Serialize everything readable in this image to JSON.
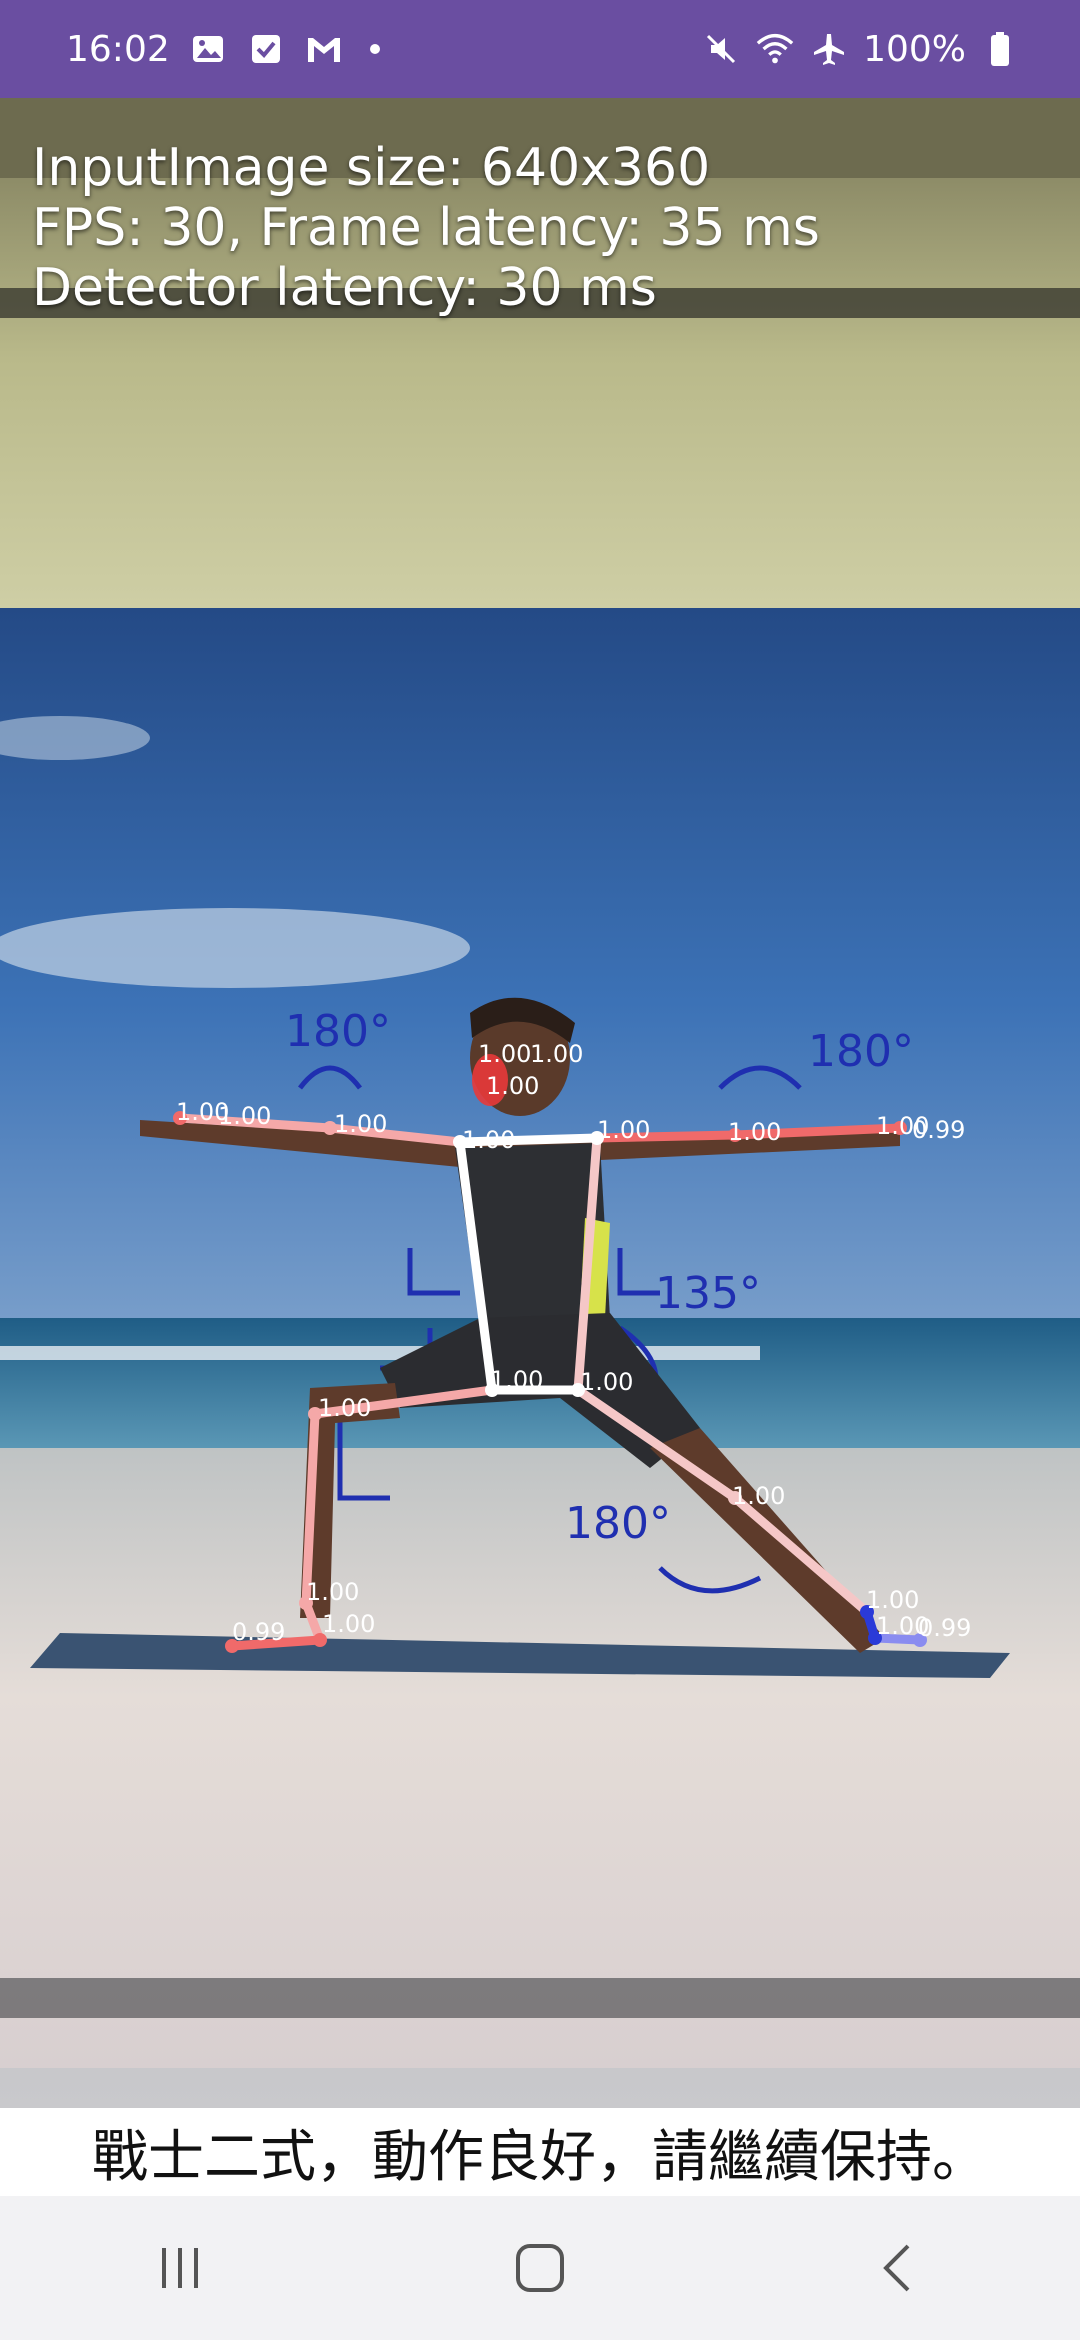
{
  "status_bar": {
    "time": "16:02",
    "battery": "100%",
    "icons_left": [
      "gallery-icon",
      "check-icon",
      "gmail-icon",
      "dot-icon"
    ],
    "icons_right": [
      "mute-icon",
      "wifi-icon",
      "airplane-icon",
      "battery-icon"
    ]
  },
  "overlay": {
    "input_size": "InputImage size: 640x360",
    "fps_latency": "FPS: 30, Frame latency: 35 ms",
    "detector_latency": "Detector latency: 30 ms"
  },
  "photo_annotations": {
    "left_shoulder_angle": "180°",
    "right_shoulder_angle": "180°",
    "hip_angle": "135°",
    "knee_angle": "180°"
  },
  "keypoint_labels": [
    {
      "id": "left-hand",
      "text": "1.00"
    },
    {
      "id": "left-hand-2",
      "text": "1.00"
    },
    {
      "id": "left-elbow",
      "text": "1.00"
    },
    {
      "id": "nose",
      "text": "1.00"
    },
    {
      "id": "face-1",
      "text": "1.00"
    },
    {
      "id": "face-2",
      "text": "1.00"
    },
    {
      "id": "left-shoulder",
      "text": "1.00"
    },
    {
      "id": "right-shoulder",
      "text": "1.00"
    },
    {
      "id": "right-elbow",
      "text": "1.00"
    },
    {
      "id": "right-hand",
      "text": "1.00"
    },
    {
      "id": "right-hand-2",
      "text": "0.99"
    },
    {
      "id": "left-hip",
      "text": "1.00"
    },
    {
      "id": "right-hip",
      "text": "1.00"
    },
    {
      "id": "left-knee",
      "text": "1.00"
    },
    {
      "id": "right-knee",
      "text": "1.00"
    },
    {
      "id": "left-ankle",
      "text": "1.00"
    },
    {
      "id": "left-heel",
      "text": "1.00"
    },
    {
      "id": "left-toe",
      "text": "0.99"
    },
    {
      "id": "right-ankle",
      "text": "1.00"
    },
    {
      "id": "right-heel",
      "text": "1.00"
    },
    {
      "id": "right-toe",
      "text": "0.99"
    }
  ],
  "feedback": {
    "message": "戰士二式，動作良好，請繼續保持。"
  },
  "navigation": {
    "recent_apps": "recent-apps",
    "home": "home",
    "back": "back"
  },
  "colors": {
    "status_bar": "#6a4ea1",
    "sky": "#3d74b8",
    "sea": "#2a6e9a",
    "sand": "#d9d5d2",
    "left_limb": "#f5a8a8",
    "right_limb": "#f06a6a",
    "torso": "#ffffff",
    "mat": "#3a5372"
  }
}
